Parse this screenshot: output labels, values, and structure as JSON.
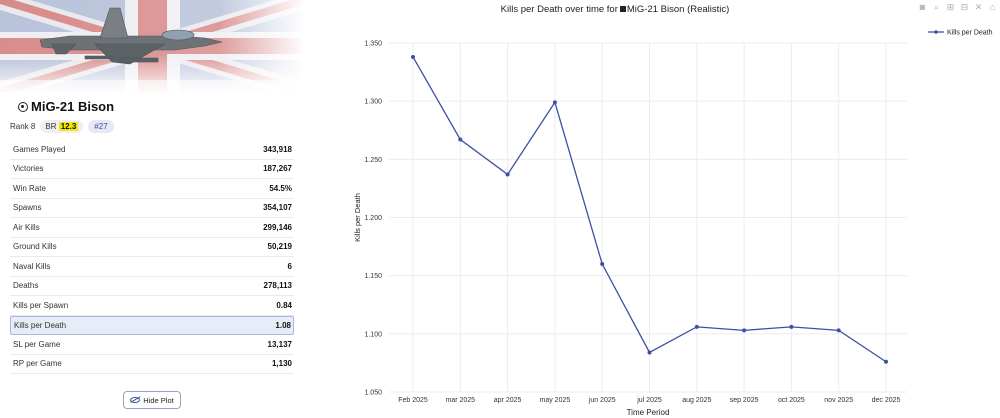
{
  "vehicle": {
    "name": "MiG-21 Bison",
    "rank": "Rank 8",
    "br_label": "BR",
    "br_value": "12.3",
    "position": "#27"
  },
  "stats": [
    {
      "label": "Games Played",
      "value": "343,918"
    },
    {
      "label": "Victories",
      "value": "187,267"
    },
    {
      "label": "Win Rate",
      "value": "54.5%"
    },
    {
      "label": "Spawns",
      "value": "354,107"
    },
    {
      "label": "Air Kills",
      "value": "299,146"
    },
    {
      "label": "Ground Kills",
      "value": "50,219"
    },
    {
      "label": "Naval Kills",
      "value": "6"
    },
    {
      "label": "Deaths",
      "value": "278,113"
    },
    {
      "label": "Kills per Spawn",
      "value": "0.84"
    },
    {
      "label": "Kills per Death",
      "value": "1.08",
      "selected": true
    },
    {
      "label": "SL per Game",
      "value": "13,137"
    },
    {
      "label": "RP per Game",
      "value": "1,130"
    }
  ],
  "buttons": {
    "hide_plot": "Hide Plot"
  },
  "toolbar": [
    "camera-icon",
    "zoom-icon",
    "zoom-in-icon",
    "zoom-out-icon",
    "autoscale-icon",
    "reset-icon"
  ],
  "chart_title": {
    "prefix": "Kills per Death over time for",
    "suffix": "MiG-21 Bison (Realistic)"
  },
  "colors": {
    "line": "#3c4fa8",
    "highlight": "#f5e60a",
    "grid": "#ececec"
  },
  "chart_data": {
    "type": "line",
    "title": "Kills per Death over time for MiG-21 Bison (Realistic)",
    "xlabel": "Time Period",
    "ylabel": "Kills per Death",
    "categories": [
      "Feb 2025",
      "mar 2025",
      "apr 2025",
      "may 2025",
      "jun 2025",
      "jul 2025",
      "aug 2025",
      "sep 2025",
      "oct 2025",
      "nov 2025",
      "dec 2025"
    ],
    "series": [
      {
        "name": "Kills per Death",
        "values": [
          1.338,
          1.267,
          1.237,
          1.299,
          1.16,
          1.084,
          1.106,
          1.103,
          1.106,
          1.103,
          1.076
        ]
      }
    ],
    "ylim": [
      1.05,
      1.35
    ],
    "yticks": [
      "1.050",
      "1.100",
      "1.150",
      "1.200",
      "1.250",
      "1.300",
      "1.350"
    ],
    "grid": true,
    "legend": "top-right"
  }
}
